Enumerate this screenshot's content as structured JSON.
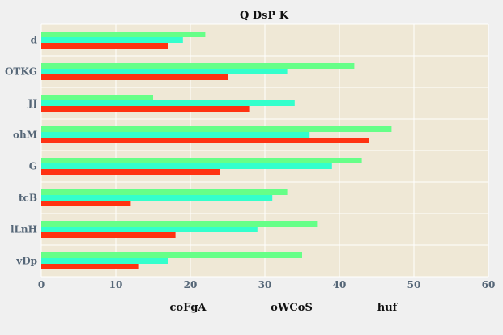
{
  "chart_data": {
    "type": "bar",
    "orientation": "horizontal",
    "title": "Q  DsP K",
    "xlabel": "",
    "ylabel": "",
    "categories": [
      "d",
      "OTKG",
      "JJ",
      "ohM",
      "G",
      "tcB",
      "lLnH",
      "vDp"
    ],
    "series": [
      {
        "name": "huf",
        "color": "#66ff88",
        "values": [
          22,
          42,
          15,
          47,
          43,
          33,
          37,
          35
        ]
      },
      {
        "name": "oWCoS",
        "color": "#33ffcc",
        "values": [
          19,
          33,
          34,
          36,
          39,
          31,
          29,
          17
        ]
      },
      {
        "name": "coFgA",
        "color": "#ff3311",
        "values": [
          17,
          25,
          28,
          44,
          24,
          12,
          18,
          13
        ]
      }
    ],
    "xlim": [
      0,
      60
    ],
    "xticks": [
      "0",
      "10",
      "20",
      "30",
      "40",
      "50",
      "60"
    ],
    "grid": true,
    "legend_position": "bottom",
    "legend_order": [
      "coFgA",
      "oWCoS",
      "huf"
    ],
    "plot_background": "#efe8d6"
  }
}
